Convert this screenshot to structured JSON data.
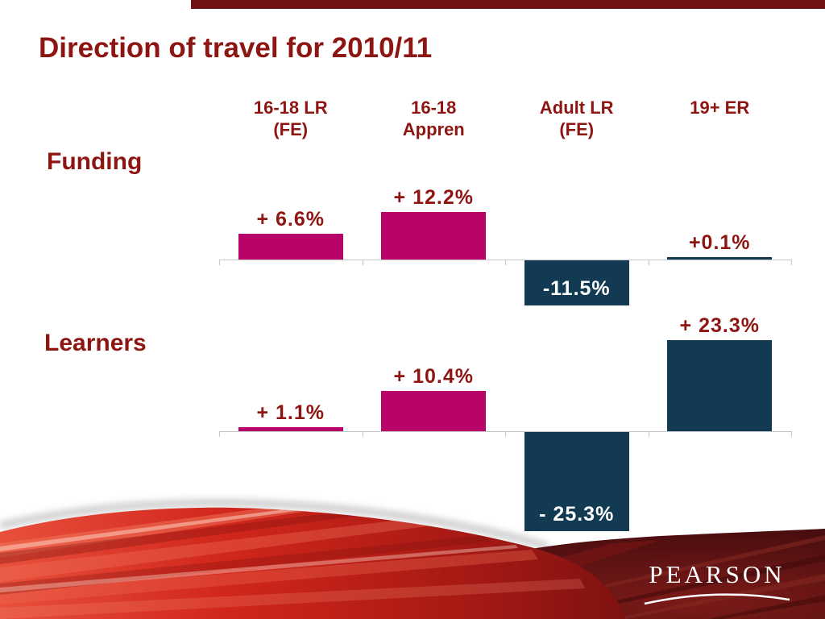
{
  "slide": {
    "title": "Direction of travel for 2010/11",
    "logo_text": "PEARSON"
  },
  "chart_data": {
    "type": "bar",
    "title": "Direction of travel for 2010/11",
    "unit": "%",
    "legend": "none",
    "baseline": 0,
    "categories": [
      "16-18 LR (FE)",
      "16-18 Appren",
      "Adult LR (FE)",
      "19+ ER"
    ],
    "category_label_lines": [
      [
        "16-18 LR",
        "(FE)"
      ],
      [
        "16-18",
        "Appren"
      ],
      [
        "Adult LR",
        "(FE)"
      ],
      [
        "19+ ER"
      ]
    ],
    "series": [
      {
        "name": "Funding",
        "values": [
          6.6,
          12.2,
          -11.5,
          0.1
        ],
        "labels": [
          "+ 6.6%",
          "+ 12.2%",
          "-11.5%",
          "+0.1%"
        ]
      },
      {
        "name": "Learners",
        "values": [
          1.1,
          10.4,
          -25.3,
          23.3
        ],
        "labels": [
          "+ 1.1%",
          "+ 10.4%",
          "- 25.3%",
          "+ 23.3%"
        ]
      }
    ],
    "bar_colors_by_column": [
      "magenta",
      "magenta",
      "navy",
      "navy"
    ],
    "palette": {
      "magenta": "#B80468",
      "navy": "#123A52",
      "heading_red": "#8D1512",
      "label_negative": "#FFFFFF",
      "axis_gray": "#C6C6C6",
      "top_bar": "#6E1216",
      "swoosh_bright_red": "#D2271C",
      "swoosh_dark_maroon": "#4A0E0F"
    }
  }
}
